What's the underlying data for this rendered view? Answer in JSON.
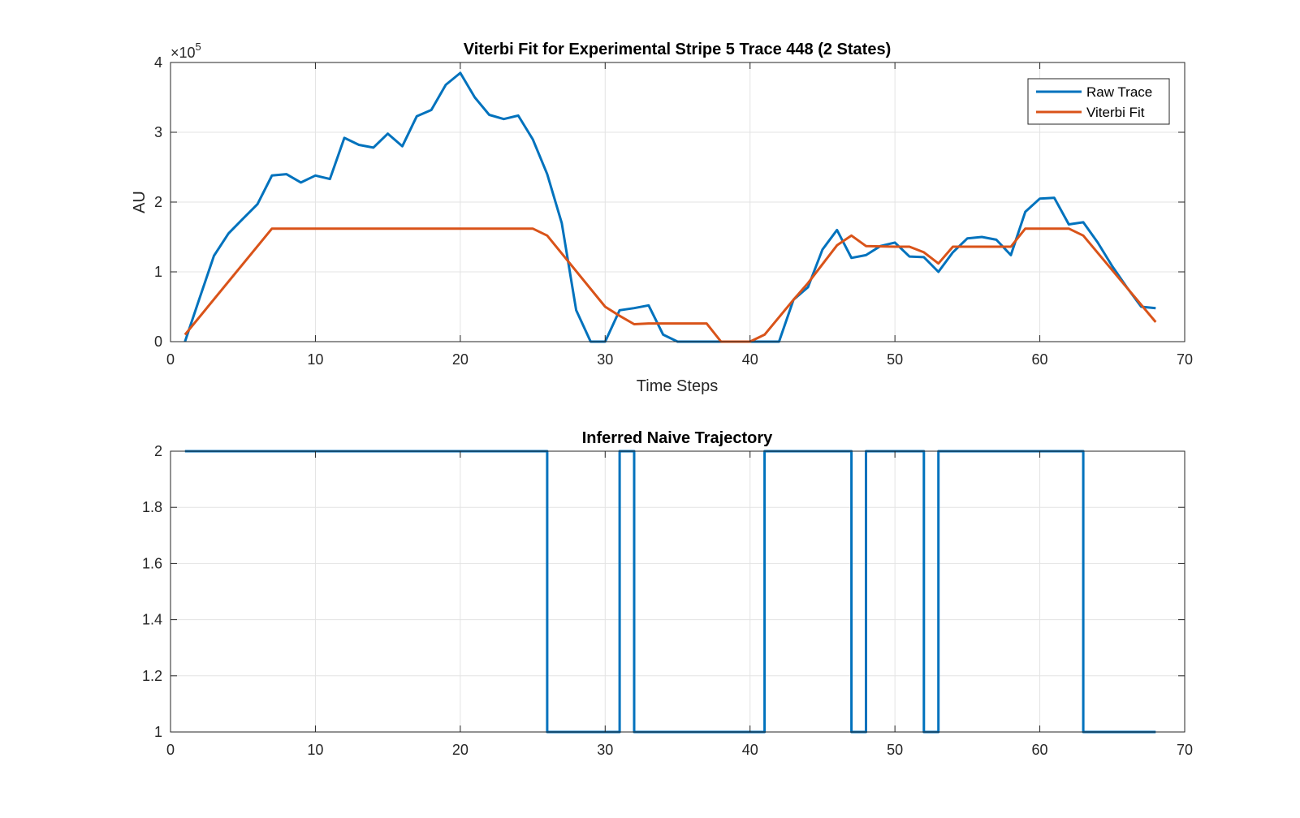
{
  "chart_data": [
    {
      "type": "line",
      "title": "Viterbi Fit for Experimental Stripe 5 Trace 448 (2 States)",
      "xlabel": "Time Steps",
      "ylabel": "AU",
      "y_exponent_label": "×10",
      "y_exponent_power": "5",
      "xlim": [
        0,
        70
      ],
      "ylim": [
        0,
        4
      ],
      "xticks": [
        "0",
        "10",
        "20",
        "30",
        "40",
        "50",
        "60",
        "70"
      ],
      "yticks": [
        "0",
        "1",
        "2",
        "3",
        "4"
      ],
      "grid": true,
      "legend_position": "top-right",
      "series": [
        {
          "name": "Raw Trace",
          "color": "#0072BD",
          "x": [
            1,
            2,
            3,
            4,
            5,
            6,
            7,
            8,
            9,
            10,
            11,
            12,
            13,
            14,
            15,
            16,
            17,
            18,
            19,
            20,
            21,
            22,
            23,
            24,
            25,
            26,
            27,
            28,
            29,
            30,
            31,
            32,
            33,
            34,
            35,
            36,
            37,
            38,
            39,
            40,
            41,
            42,
            43,
            44,
            45,
            46,
            47,
            48,
            49,
            50,
            51,
            52,
            53,
            54,
            55,
            56,
            57,
            58,
            59,
            60,
            61,
            62,
            63,
            64,
            65,
            66,
            67,
            68
          ],
          "values": [
            0.0,
            0.62,
            1.23,
            1.55,
            1.76,
            1.97,
            2.38,
            2.4,
            2.28,
            2.38,
            2.33,
            2.92,
            2.82,
            2.78,
            2.98,
            2.8,
            3.23,
            3.32,
            3.68,
            3.85,
            3.5,
            3.25,
            3.19,
            3.24,
            2.9,
            2.4,
            1.7,
            0.45,
            0.0,
            0.0,
            0.45,
            0.48,
            0.52,
            0.1,
            0.0,
            0.0,
            0.0,
            0.0,
            0.0,
            0.0,
            0.0,
            0.0,
            0.6,
            0.78,
            1.32,
            1.6,
            1.2,
            1.24,
            1.37,
            1.42,
            1.22,
            1.21,
            1.0,
            1.28,
            1.48,
            1.5,
            1.46,
            1.24,
            1.86,
            2.05,
            2.06,
            1.68,
            1.71,
            1.42,
            1.08,
            0.78,
            0.5,
            0.48
          ]
        },
        {
          "name": "Viterbi Fit",
          "color": "#D95319",
          "x": [
            1,
            7,
            25,
            26,
            30,
            31,
            32,
            33,
            37,
            38,
            40,
            41,
            43,
            44,
            46,
            47,
            48,
            50,
            51,
            52,
            53,
            54,
            58,
            59,
            62,
            63,
            68
          ],
          "values": [
            0.1,
            1.62,
            1.62,
            1.52,
            0.5,
            0.37,
            0.25,
            0.26,
            0.26,
            0.0,
            0.0,
            0.1,
            0.6,
            0.84,
            1.38,
            1.52,
            1.37,
            1.36,
            1.36,
            1.28,
            1.12,
            1.36,
            1.36,
            1.62,
            1.62,
            1.52,
            0.28
          ]
        }
      ]
    },
    {
      "type": "line",
      "title": "Inferred Naive Trajectory",
      "xlim": [
        0,
        70
      ],
      "ylim": [
        1,
        2
      ],
      "xticks": [
        "0",
        "10",
        "20",
        "30",
        "40",
        "50",
        "60",
        "70"
      ],
      "yticks": [
        "1",
        "1.2",
        "1.4",
        "1.6",
        "1.8",
        "2"
      ],
      "grid": true,
      "series": [
        {
          "color": "#0072BD",
          "x": [
            1,
            26,
            26,
            31,
            31,
            32,
            32,
            41,
            41,
            47,
            47,
            48,
            48,
            52,
            52,
            53,
            53,
            63,
            63,
            68
          ],
          "values": [
            2,
            2,
            1,
            1,
            2,
            2,
            1,
            1,
            2,
            2,
            1,
            1,
            2,
            2,
            1,
            1,
            2,
            2,
            1,
            1
          ]
        }
      ]
    }
  ]
}
